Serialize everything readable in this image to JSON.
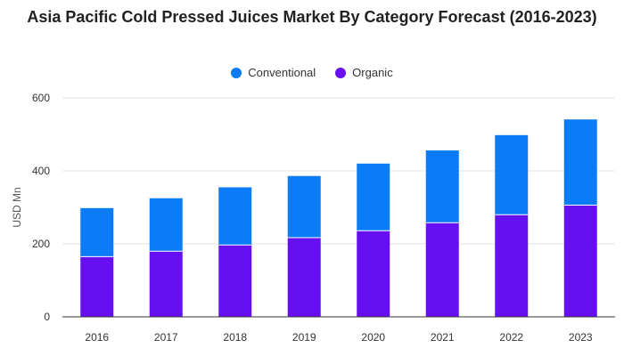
{
  "chart_data": {
    "type": "bar",
    "stacked": true,
    "title": "Asia Pacific Cold Pressed Juices Market By Category Forecast (2016-2023)",
    "xlabel": "",
    "ylabel": "USD Mn",
    "categories": [
      "2016",
      "2017",
      "2018",
      "2019",
      "2020",
      "2021",
      "2022",
      "2023"
    ],
    "series": [
      {
        "name": "Organic",
        "color": "#6610f2",
        "values": [
          165,
          180,
          197,
          217,
          236,
          258,
          280,
          306
        ]
      },
      {
        "name": "Conventional",
        "color": "#0b7cf5",
        "values": [
          133,
          145,
          158,
          169,
          184,
          198,
          218,
          235
        ]
      }
    ],
    "legend_order": [
      "Conventional",
      "Organic"
    ],
    "legend_position": "top-center",
    "ylim": [
      0,
      600
    ],
    "yticks": [
      0,
      200,
      400,
      600
    ],
    "grid": true
  }
}
